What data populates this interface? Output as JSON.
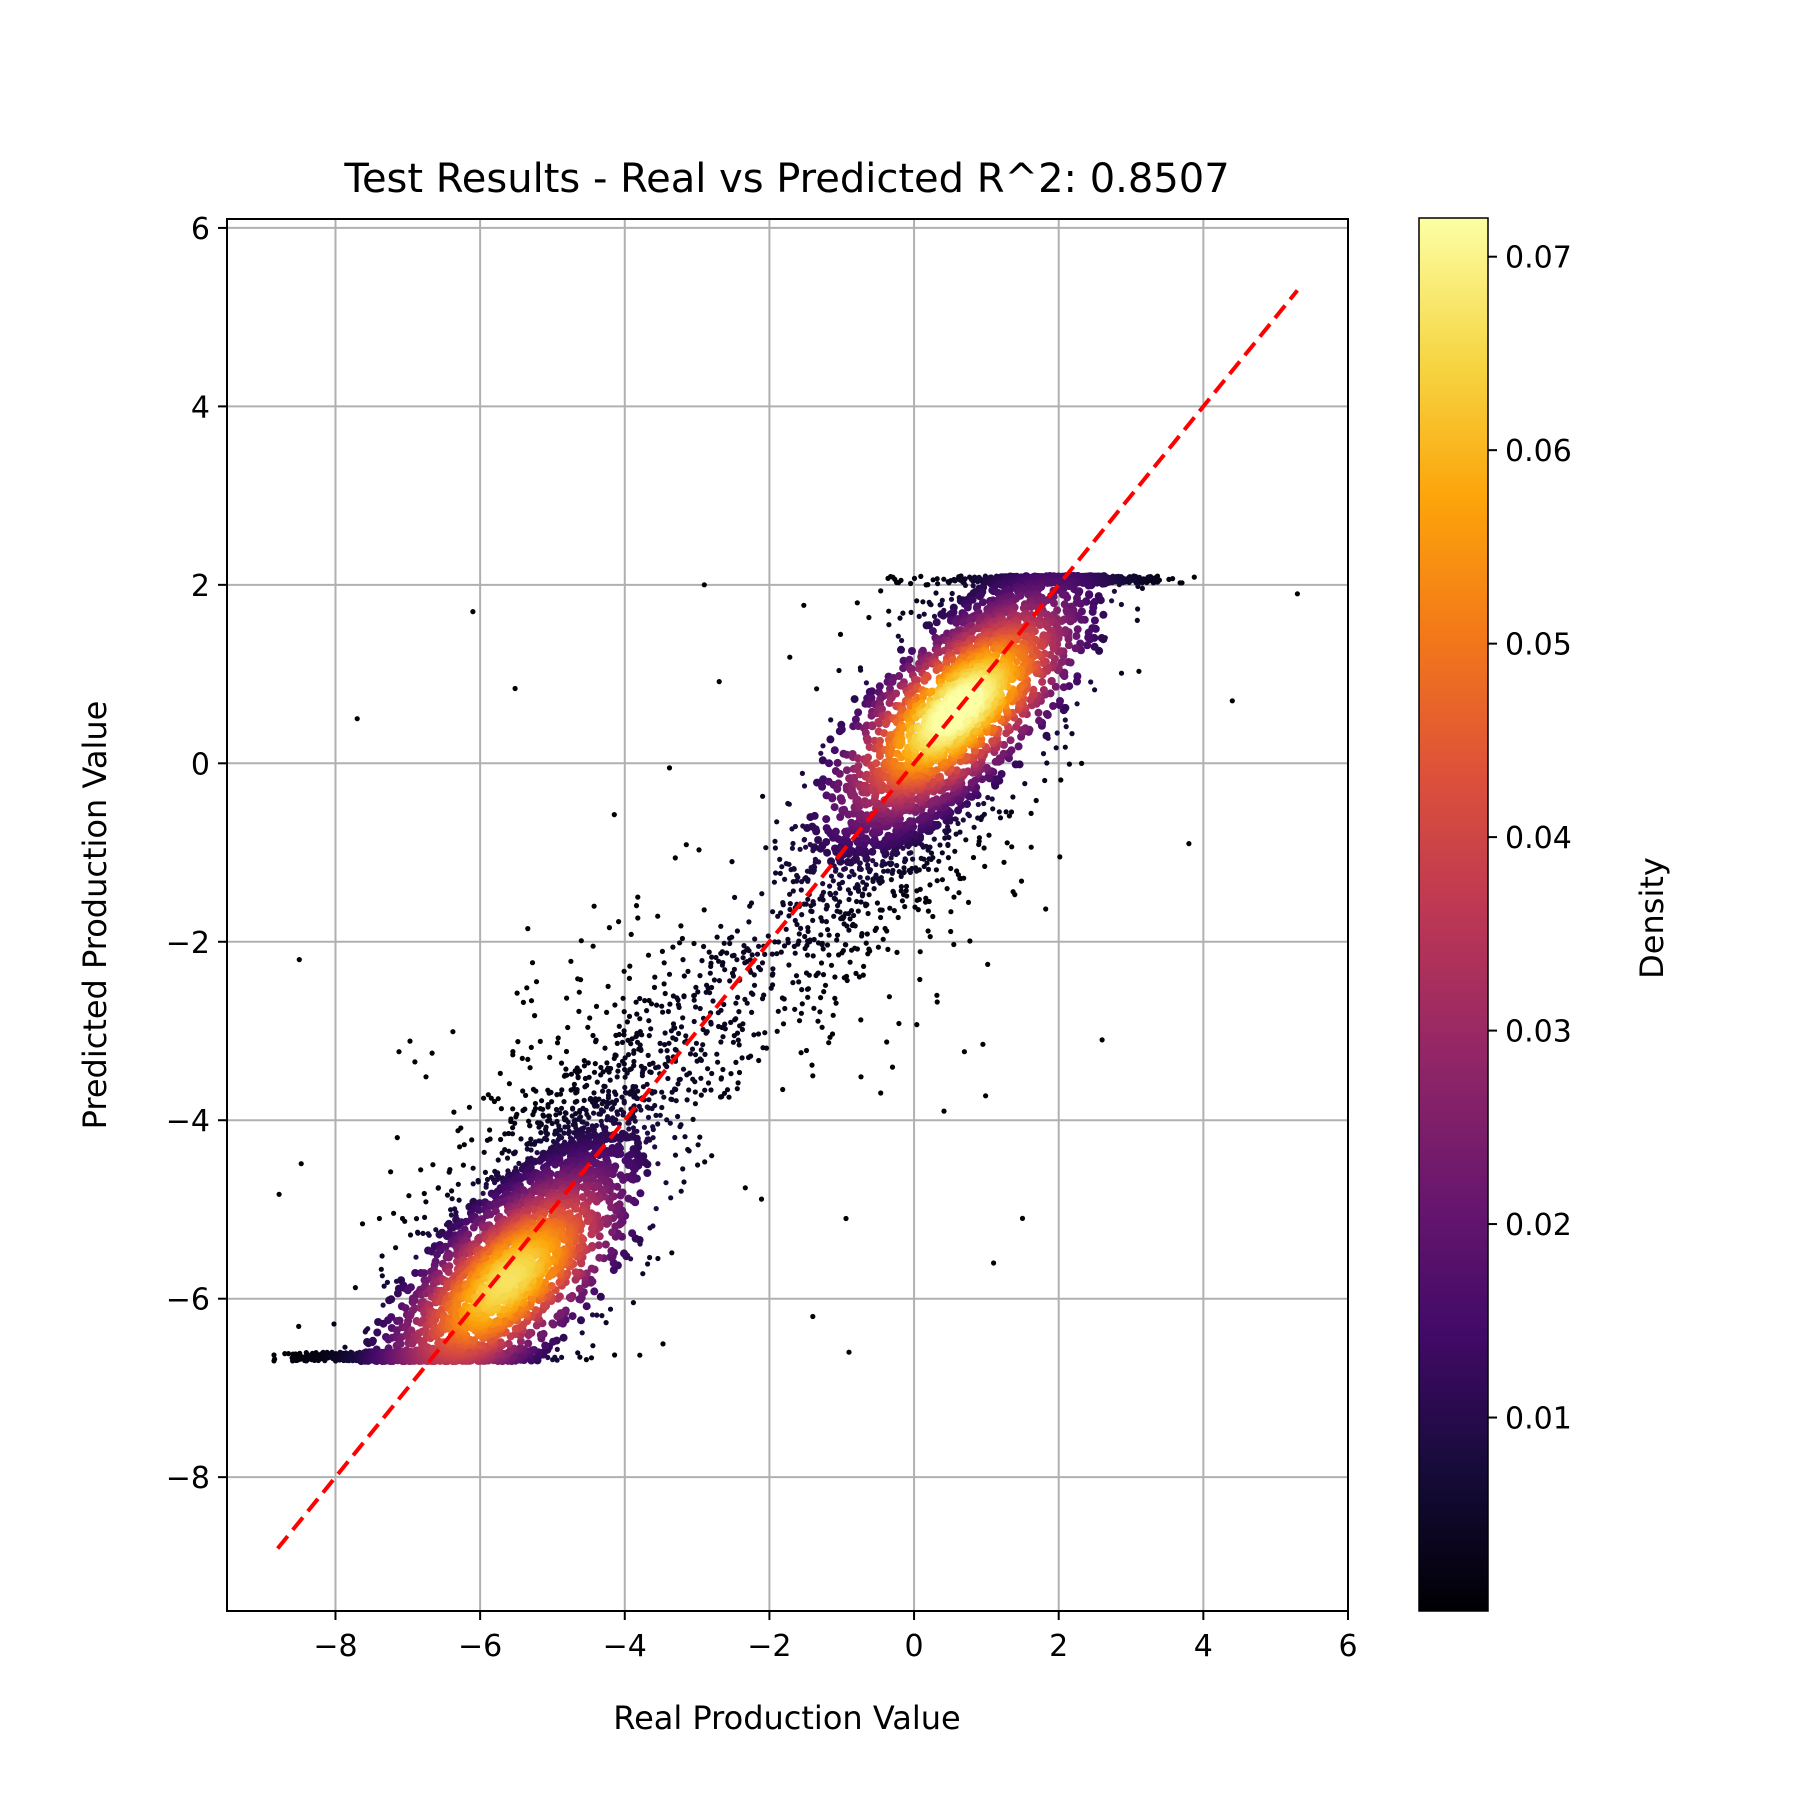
{
  "chart_data": {
    "type": "scatter",
    "title": "Test Results - Real vs Predicted R^2: 0.8507",
    "xlabel": "Real Production Value",
    "ylabel": "Predicted Production Value",
    "xlim": [
      -9.5,
      6
    ],
    "ylim": [
      -9.5,
      6.1
    ],
    "xticks": [
      -8,
      -6,
      -4,
      -2,
      0,
      2,
      4,
      6
    ],
    "xtick_labels": [
      "−8",
      "−6",
      "−4",
      "−2",
      "0",
      "2",
      "4",
      "6"
    ],
    "yticks": [
      -8,
      -6,
      -4,
      -2,
      0,
      2,
      4,
      6
    ],
    "ytick_labels": [
      "−8",
      "−6",
      "−4",
      "−2",
      "0",
      "2",
      "4",
      "6"
    ],
    "grid": true,
    "colormap": "inferno",
    "point_color_by": "density",
    "prediction_clip_min": -6.7,
    "prediction_clip_max": 2.1,
    "density_clusters": [
      {
        "x": -5.6,
        "y": -5.8,
        "peak_density": 0.063
      },
      {
        "x": 0.6,
        "y": 0.6,
        "peak_density": 0.071
      }
    ],
    "outliers": [
      {
        "x": -8.5,
        "y": -2.2
      },
      {
        "x": -7.7,
        "y": 0.5
      },
      {
        "x": -6.1,
        "y": 1.7
      },
      {
        "x": -2.9,
        "y": 2.0
      },
      {
        "x": 1.1,
        "y": -5.6
      },
      {
        "x": -0.9,
        "y": -6.6
      },
      {
        "x": 2.6,
        "y": -3.1
      },
      {
        "x": 5.3,
        "y": 1.9
      },
      {
        "x": 4.4,
        "y": 0.7
      },
      {
        "x": 3.8,
        "y": -0.9
      },
      {
        "x": 1.5,
        "y": -5.1
      },
      {
        "x": -1.4,
        "y": -6.2
      }
    ],
    "reference_line": {
      "x": [
        -8.8,
        5.3
      ],
      "y": [
        -8.8,
        5.3
      ],
      "color": "#ff0000",
      "style": "dashed"
    },
    "colorbar": {
      "label": "Density",
      "min": 0.0,
      "max": 0.072,
      "ticks": [
        0.01,
        0.02,
        0.03,
        0.04,
        0.05,
        0.06,
        0.07
      ],
      "tick_labels": [
        "0.01",
        "0.02",
        "0.03",
        "0.04",
        "0.05",
        "0.06",
        "0.07"
      ]
    }
  }
}
